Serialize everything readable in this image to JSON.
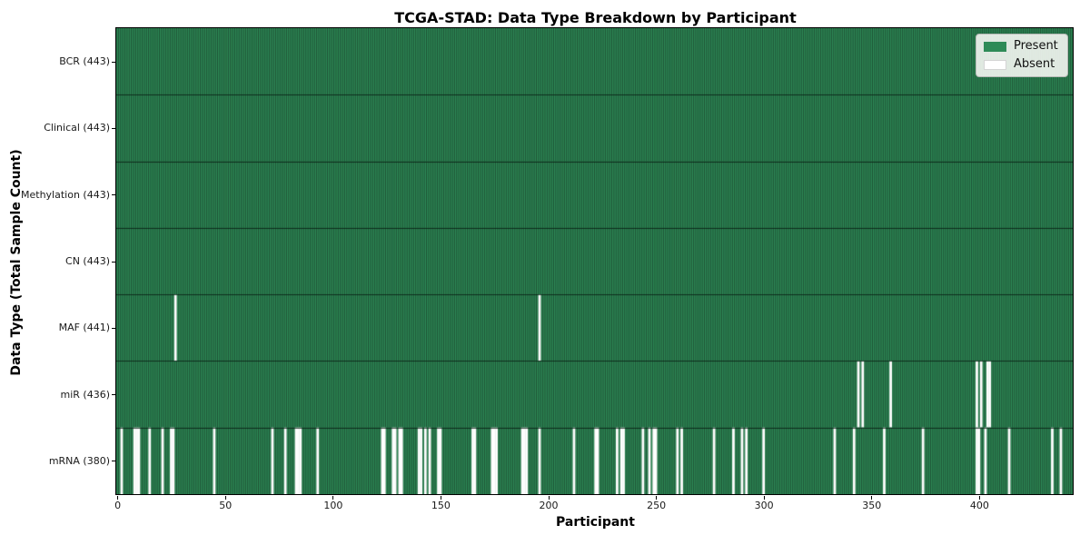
{
  "chart_data": {
    "type": "heatmap",
    "title": "TCGA-STAD: Data Type Breakdown by Participant",
    "xlabel": "Participant",
    "ylabel": "Data Type (Total Sample Count)",
    "n_participants": 443,
    "x_ticks": [
      0,
      50,
      100,
      150,
      200,
      250,
      300,
      350,
      400
    ],
    "grid": false,
    "legend_position": "upper right",
    "colors": {
      "present": "#2e8b57",
      "present_edge": "#1e5235",
      "absent": "#ffffff",
      "separator": "rgba(8,24,16,0.75)",
      "tick": "#000000"
    },
    "rows": [
      {
        "name": "BCR",
        "label": "BCR (443)",
        "total": 443,
        "absent": []
      },
      {
        "name": "Clinical",
        "label": "Clinical (443)",
        "total": 443,
        "absent": []
      },
      {
        "name": "Methylation",
        "label": "Methylation (443)",
        "total": 443,
        "absent": []
      },
      {
        "name": "CN",
        "label": "CN (443)",
        "total": 443,
        "absent": []
      },
      {
        "name": "MAF",
        "label": "MAF (441)",
        "total": 441,
        "absent": [
          27,
          196
        ]
      },
      {
        "name": "miR",
        "label": "miR (436)",
        "total": 436,
        "absent": [
          344,
          346,
          359,
          399,
          401,
          404,
          405
        ]
      },
      {
        "name": "mRNA",
        "label": "mRNA (380)",
        "total": 380,
        "absent": [
          2,
          8,
          9,
          10,
          15,
          21,
          25,
          26,
          45,
          72,
          78,
          83,
          84,
          85,
          93,
          123,
          124,
          128,
          129,
          131,
          132,
          140,
          141,
          143,
          145,
          149,
          150,
          165,
          166,
          174,
          175,
          176,
          188,
          189,
          190,
          196,
          212,
          222,
          223,
          232,
          234,
          235,
          244,
          247,
          249,
          250,
          260,
          262,
          277,
          286,
          290,
          292,
          300,
          333,
          342,
          356,
          374,
          399,
          400,
          403,
          414,
          434,
          438
        ]
      }
    ],
    "legend": [
      {
        "label": "Present",
        "color": "#2e8b57"
      },
      {
        "label": "Absent",
        "color": "#ffffff"
      }
    ]
  }
}
